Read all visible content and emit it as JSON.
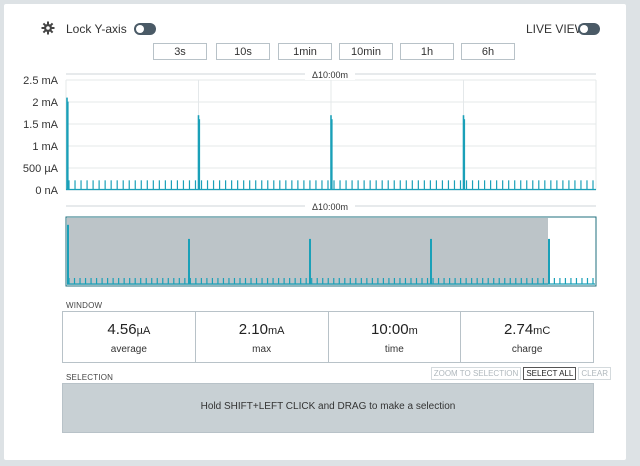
{
  "header": {
    "lock_y_label": "Lock Y-axis",
    "live_view_label": "LIVE VIEW",
    "settings_icon": "gear-icon"
  },
  "time_ranges": [
    "3s",
    "10s",
    "1min",
    "10min",
    "1h",
    "6h"
  ],
  "main_chart": {
    "window_label": "Δ10:00m",
    "y_ticks": [
      "2.5 mA",
      "2 mA",
      "1.5 mA",
      "1 mA",
      "500 µA",
      "0 nA"
    ]
  },
  "minimap": {
    "window_label": "Δ10:00m"
  },
  "window_section": {
    "label": "WINDOW",
    "stats": [
      {
        "value": "4.56",
        "unit": "µA",
        "label": "average"
      },
      {
        "value": "2.10",
        "unit": "mA",
        "label": "max"
      },
      {
        "value": "10:00",
        "unit": "m",
        "label": "time"
      },
      {
        "value": "2.74",
        "unit": "mC",
        "label": "charge"
      }
    ]
  },
  "selection_section": {
    "label": "SELECTION",
    "zoom_label": "ZOOM TO SELECTION",
    "select_all_label": "SELECT ALL",
    "clear_label": "CLEAR",
    "hint": "Hold SHIFT+LEFT CLICK and DRAG to make a selection"
  },
  "colors": {
    "trace": "#1aa0b8",
    "minimap_fill": "#bcc4c8",
    "grid": "#e4e8ea",
    "toggle": "#4a5a66"
  },
  "chart_data": {
    "type": "line",
    "ylim_mA": [
      0,
      2.5
    ],
    "xlim_min": [
      0,
      10
    ],
    "baseline_spike_mA": 0.22,
    "big_spikes": [
      {
        "x_min": 0.0,
        "y_mA": 2.1
      },
      {
        "x_min": 2.5,
        "y_mA": 1.7
      },
      {
        "x_min": 5.0,
        "y_mA": 1.7
      },
      {
        "x_min": 7.5,
        "y_mA": 1.7
      }
    ]
  }
}
